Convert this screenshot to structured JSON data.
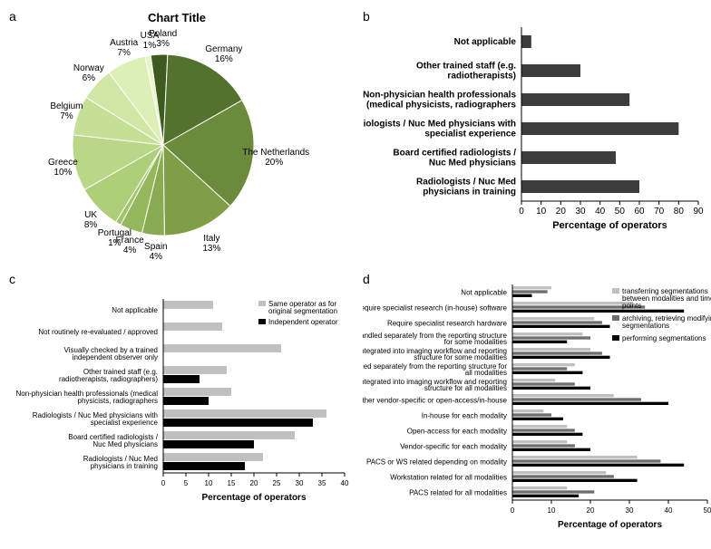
{
  "panel_a": {
    "label": "a",
    "title": "Chart Title",
    "type": "pie",
    "slices": [
      {
        "name": "Germany",
        "pct": 16,
        "color": "#54712e"
      },
      {
        "name": "The Netherlands",
        "pct": 20,
        "color": "#6b8a3b"
      },
      {
        "name": "Italy",
        "pct": 13,
        "color": "#7f9e46"
      },
      {
        "name": "Spain",
        "pct": 4,
        "color": "#8aab51"
      },
      {
        "name": "France",
        "pct": 4,
        "color": "#96b85d"
      },
      {
        "name": "Portugal",
        "pct": 1,
        "color": "#a2c46a"
      },
      {
        "name": "UK",
        "pct": 8,
        "color": "#aece78"
      },
      {
        "name": "Greece",
        "pct": 10,
        "color": "#bad787"
      },
      {
        "name": "Belgium",
        "pct": 7,
        "color": "#c6df96"
      },
      {
        "name": "Norway",
        "pct": 6,
        "color": "#d1e7a6"
      },
      {
        "name": "Austria",
        "pct": 7,
        "color": "#dcefb6"
      },
      {
        "name": "USA",
        "pct": 1,
        "color": "#e8f5c6"
      },
      {
        "name": "Poland",
        "pct": 3,
        "color": "#3e5a1f"
      }
    ],
    "label_fontsize": 10,
    "title_fontsize": 13
  },
  "panel_b": {
    "label": "b",
    "type": "bar-horizontal",
    "xaxis_title": "Percentage of operators",
    "xlim": [
      0,
      90
    ],
    "xtick_step": 10,
    "bar_color": "#3c3c3c",
    "categories": [
      {
        "lines": [
          "Not applicable"
        ],
        "value": 5
      },
      {
        "lines": [
          "Other trained staff (e.g.",
          "radiotherapists)"
        ],
        "value": 30
      },
      {
        "lines": [
          "Non-physician health professionals",
          "(medical physicists, radiographers"
        ],
        "value": 55
      },
      {
        "lines": [
          "Radiologists / Nuc Med physicians with",
          "specialist experience"
        ],
        "value": 80
      },
      {
        "lines": [
          "Board certified radiologists /",
          "Nuc Med physicians"
        ],
        "value": 48
      },
      {
        "lines": [
          "Radiologists / Nuc Med",
          "physicians in training"
        ],
        "value": 60
      }
    ],
    "xaxis_title_fontsize": 11,
    "tick_fontsize": 10,
    "label_fontsize": 10,
    "label_weight": "bold"
  },
  "panel_c": {
    "label": "c",
    "type": "grouped-bar-horizontal",
    "xaxis_title": "Percentage of operators",
    "xlim": [
      0,
      40
    ],
    "xtick_step": 5,
    "series": [
      {
        "name": "Same operator as for original segmentation",
        "color": "#c0c0c0"
      },
      {
        "name": "Independent operator",
        "color": "#000000"
      }
    ],
    "categories": [
      {
        "lines": [
          "Not applicable"
        ],
        "values": [
          11,
          null
        ]
      },
      {
        "lines": [
          "Not routinely re-evaluated / approved"
        ],
        "values": [
          13,
          null
        ]
      },
      {
        "lines": [
          "Visually checked by a trained",
          "independent observer only"
        ],
        "values": [
          26,
          null
        ]
      },
      {
        "lines": [
          "Other trained staff (e.g.",
          "radiotherapists, radiographers)"
        ],
        "values": [
          14,
          8
        ]
      },
      {
        "lines": [
          "Non-physician health professionals (medical",
          "physicists, radiographers"
        ],
        "values": [
          15,
          10
        ]
      },
      {
        "lines": [
          "Radiologists / Nuc Med physicians with",
          "specialist experience"
        ],
        "values": [
          36,
          33
        ]
      },
      {
        "lines": [
          "Board certified radiologists /",
          "Nuc Med physicians"
        ],
        "values": [
          29,
          20
        ]
      },
      {
        "lines": [
          "Radiologists / Nuc Med",
          "physicians in training"
        ],
        "values": [
          22,
          18
        ]
      }
    ]
  },
  "panel_d": {
    "label": "d",
    "type": "grouped-bar-horizontal",
    "xaxis_title": "Percentage of operators",
    "xlim": [
      0,
      50
    ],
    "xtick_step": 10,
    "series": [
      {
        "name": "transferring segmentations between modalities and time-points",
        "color": "#c0c0c0"
      },
      {
        "name": "archiving, retrieving modifying segmentations",
        "color": "#6e6e6e"
      },
      {
        "name": "performing segmentations",
        "color": "#000000"
      }
    ],
    "legend_lines": [
      [
        "transferring segmentations",
        "between modalities and time-",
        "points"
      ],
      [
        "archiving, retrieving modifying",
        "segmentations"
      ],
      [
        "performing segmentations"
      ]
    ],
    "categories": [
      {
        "lines": [
          "Not applicable"
        ],
        "values": [
          10,
          9,
          5
        ]
      },
      {
        "lines": [
          "Require specialist research (in-house) software"
        ],
        "values": [
          31,
          34,
          44
        ]
      },
      {
        "lines": [
          "Require specialist research hardware"
        ],
        "values": [
          21,
          23,
          25
        ]
      },
      {
        "lines": [
          "Handled separately from the reporting structure",
          "for some modalities"
        ],
        "values": [
          18,
          20,
          14
        ]
      },
      {
        "lines": [
          "Integrated into imaging workflow and reporting",
          "structure for some modalities"
        ],
        "values": [
          20,
          23,
          25
        ]
      },
      {
        "lines": [
          "Handled separately from the reporting structure for",
          "all modalities"
        ],
        "values": [
          16,
          14,
          18
        ]
      },
      {
        "lines": [
          "Integrated into imaging workflow and reporting",
          "structure for all modalities"
        ],
        "values": [
          11,
          16,
          20
        ]
      },
      {
        "lines": [
          "Either vendor-specific or open-access/in-house"
        ],
        "values": [
          26,
          33,
          40
        ]
      },
      {
        "lines": [
          "In-house for each modality"
        ],
        "values": [
          8,
          10,
          13
        ]
      },
      {
        "lines": [
          "Open-access for each modality"
        ],
        "values": [
          14,
          16,
          18
        ]
      },
      {
        "lines": [
          "Vendor-specific for each modality"
        ],
        "values": [
          14,
          16,
          20
        ]
      },
      {
        "lines": [
          "PACS or WS related depending on modality"
        ],
        "values": [
          32,
          38,
          44
        ]
      },
      {
        "lines": [
          "Workstation related for all modalities"
        ],
        "values": [
          24,
          26,
          32
        ]
      },
      {
        "lines": [
          "PACS related for all modalities"
        ],
        "values": [
          14,
          21,
          17
        ]
      }
    ]
  }
}
